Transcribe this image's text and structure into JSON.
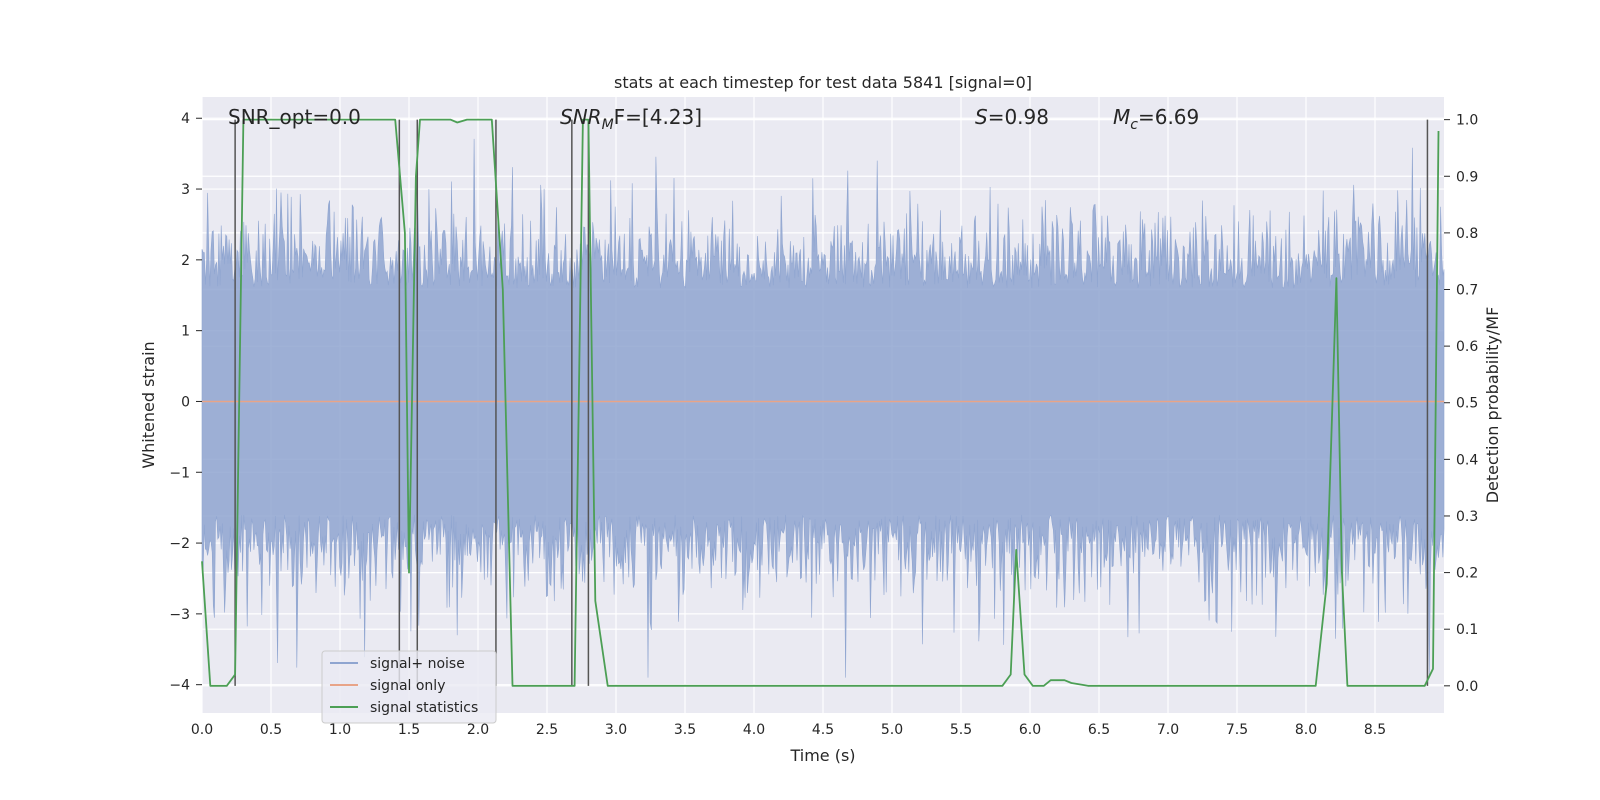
{
  "chart_data": {
    "type": "line",
    "title": "stats at each timestep for test data 5841 [signal=0]",
    "xlabel": "Time (s)",
    "ylabel": "Whitened strain",
    "ylabel_right": "Detection probability/MF",
    "xlim": [
      0.0,
      9.0
    ],
    "ylim": [
      -4.4,
      4.3
    ],
    "ylim_right": [
      -0.048,
      1.04
    ],
    "x_ticks": [
      "0.0",
      "0.5",
      "1.0",
      "1.5",
      "2.0",
      "2.5",
      "3.0",
      "3.5",
      "4.0",
      "4.5",
      "5.0",
      "5.5",
      "6.0",
      "6.5",
      "7.0",
      "7.5",
      "8.0",
      "8.5"
    ],
    "x_tick_values": [
      0,
      0.5,
      1,
      1.5,
      2,
      2.5,
      3,
      3.5,
      4,
      4.5,
      5,
      5.5,
      6,
      6.5,
      7,
      7.5,
      8,
      8.5
    ],
    "y_ticks": [
      "4",
      "3",
      "2",
      "1",
      "0",
      "−1",
      "−2",
      "−3",
      "−4"
    ],
    "y_tick_values": [
      4,
      3,
      2,
      1,
      0,
      -1,
      -2,
      -3,
      -4
    ],
    "y_right_ticks": [
      "1.0",
      "0.9",
      "0.8",
      "0.7",
      "0.6",
      "0.5",
      "0.4",
      "0.3",
      "0.2",
      "0.1",
      "0.0"
    ],
    "y_right_tick_values": [
      1.0,
      0.9,
      0.8,
      0.7,
      0.6,
      0.5,
      0.4,
      0.3,
      0.2,
      0.1,
      0.0
    ],
    "annotations": {
      "snr_opt": "SNR_opt=0.0",
      "snr_mf_base": "SNR",
      "snr_mf_sub": "M",
      "snr_mf_rest": "F=[4.23]",
      "s_base": "S",
      "s_rest": "=0.98",
      "mc_base": "M",
      "mc_sub": "c",
      "mc_rest": "=6.69"
    },
    "legend": {
      "placement": "lower-left",
      "entries": [
        {
          "label": "signal+ noise",
          "color": "#8fa5d0"
        },
        {
          "label": "signal only",
          "color": "#e8a488"
        },
        {
          "label": "signal statistics",
          "color": "#4c9f55"
        }
      ]
    },
    "series": [
      {
        "name": "signal+ noise",
        "axis": "left",
        "kind": "noise-envelope",
        "color": "#8fa5d0",
        "approx_range": [
          -3.9,
          3.9
        ],
        "typical_band": [
          -1.6,
          1.6
        ]
      },
      {
        "name": "signal only",
        "axis": "left",
        "color": "#e8a488",
        "x": [
          0.0,
          9.0
        ],
        "y": [
          0.0,
          0.0
        ]
      },
      {
        "name": "signal statistics",
        "axis": "right",
        "color": "#4c9f55",
        "x": [
          0.0,
          0.06,
          0.18,
          0.24,
          0.3,
          0.5,
          1.0,
          1.4,
          1.47,
          1.5,
          1.55,
          1.58,
          1.62,
          1.8,
          1.85,
          1.92,
          2.0,
          2.1,
          2.18,
          2.25,
          2.4,
          2.7,
          2.76,
          2.8,
          2.85,
          2.94,
          3.0,
          3.5,
          4.0,
          4.5,
          5.0,
          5.5,
          5.8,
          5.86,
          5.9,
          5.96,
          6.02,
          6.1,
          6.15,
          6.25,
          6.3,
          6.42,
          6.5,
          7.0,
          7.5,
          8.0,
          8.07,
          8.15,
          8.22,
          8.26,
          8.3,
          8.5,
          8.75,
          8.82,
          8.86,
          8.92,
          8.96
        ],
        "y": [
          0.22,
          0.0,
          0.0,
          0.02,
          1.0,
          1.0,
          1.0,
          1.0,
          0.8,
          0.2,
          0.9,
          1.0,
          1.0,
          1.0,
          0.995,
          1.0,
          1.0,
          1.0,
          0.7,
          0.0,
          0.0,
          0.0,
          1.0,
          1.0,
          0.15,
          0.0,
          0.0,
          0.0,
          0.0,
          0.0,
          0.0,
          0.0,
          0.0,
          0.02,
          0.24,
          0.02,
          0.0,
          0.0,
          0.01,
          0.01,
          0.005,
          0.0,
          0.0,
          0.0,
          0.0,
          0.0,
          0.0,
          0.18,
          0.72,
          0.2,
          0.0,
          0.0,
          0.0,
          0.0,
          0.0,
          0.03,
          0.98
        ]
      }
    ],
    "vertical_markers": [
      0.24,
      1.43,
      1.56,
      2.13,
      2.68,
      2.8,
      8.88
    ]
  }
}
